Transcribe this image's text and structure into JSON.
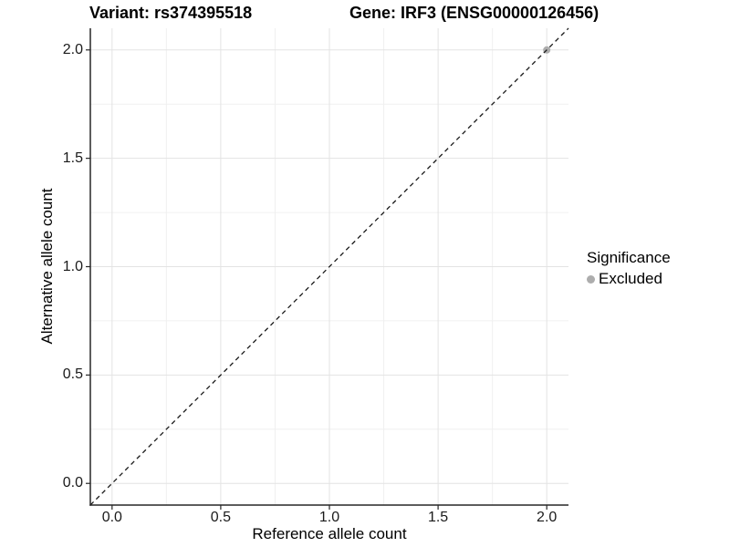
{
  "chart_data": {
    "type": "scatter",
    "titles": {
      "left": "Variant: rs374395518",
      "right": "Gene: IRF3 (ENSG00000126456)"
    },
    "xlabel": "Reference allele count",
    "ylabel": "Alternative allele count",
    "xlim": [
      -0.1,
      2.1
    ],
    "ylim": [
      -0.1,
      2.1
    ],
    "x_tick_values": [
      0,
      0.5,
      1,
      1.5,
      2
    ],
    "x_tick_labels": [
      "0.0",
      "0.5",
      "1.0",
      "1.5",
      "2.0"
    ],
    "y_tick_values": [
      0,
      0.5,
      1,
      1.5,
      2
    ],
    "y_tick_labels": [
      "0.0",
      "0.5",
      "1.0",
      "1.5",
      "2.0"
    ],
    "minor_grid_values": [
      0.25,
      0.75,
      1.25,
      1.75
    ],
    "grid": true,
    "reference_line": {
      "type": "identity y=x",
      "style": "dashed",
      "from": [
        -0.1,
        -0.1
      ],
      "to": [
        2.1,
        2.1
      ]
    },
    "points": [
      {
        "x": 2.0,
        "y": 2.0,
        "series": "Excluded"
      }
    ],
    "legend": {
      "position": "right",
      "title": "Significance",
      "items": [
        {
          "label": "Excluded",
          "color": "#adadad",
          "marker": "circle"
        }
      ]
    },
    "colors": {
      "background": "#ffffff",
      "major_grid": "#e3e3e3",
      "minor_grid": "#f0f0f0",
      "axis_line": "#262626",
      "tick_mark": "#262626",
      "dashed_line": "#1a1a1a",
      "point": "#adadad",
      "text": "#000000"
    }
  }
}
